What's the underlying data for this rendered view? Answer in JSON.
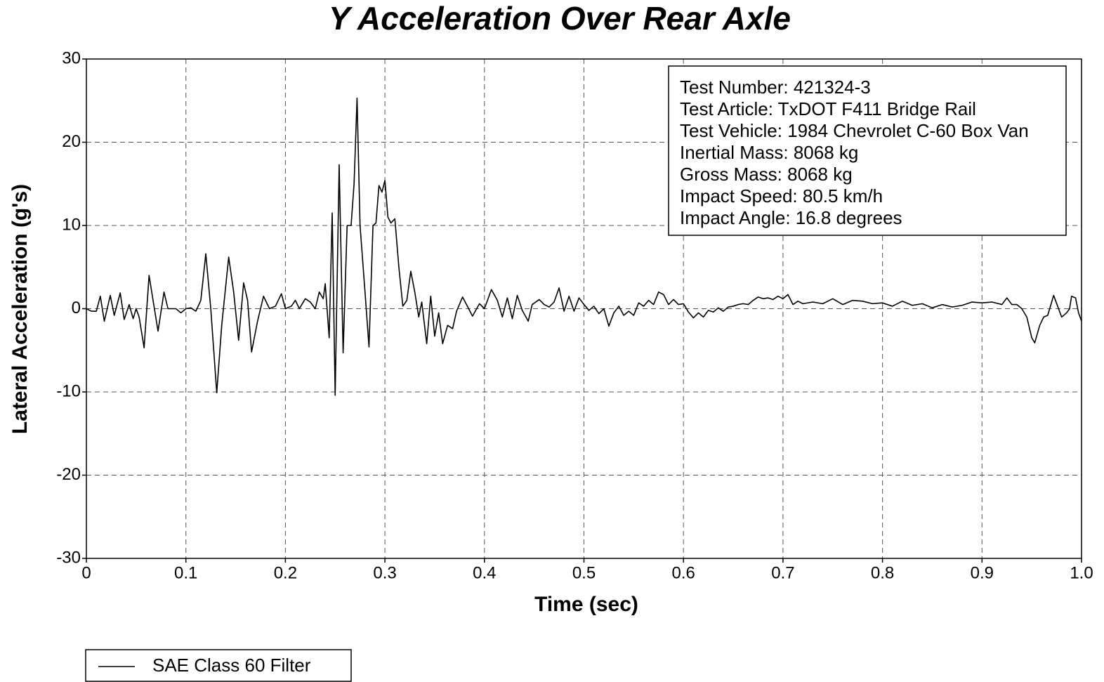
{
  "chart_data": {
    "type": "line",
    "title": "Y Acceleration Over Rear Axle",
    "x_label": "Time (sec)",
    "y_label": "Lateral Acceleration (g's)",
    "xlim": [
      0,
      1
    ],
    "ylim": [
      -30,
      30
    ],
    "xticks": [
      0,
      0.1,
      0.2,
      0.3,
      0.4,
      0.5,
      0.6,
      0.7,
      0.8,
      0.9,
      {
        "value": 1,
        "label": "1.0"
      }
    ],
    "yticks": [
      -30,
      -20,
      -10,
      0,
      10,
      20,
      30
    ],
    "grid": true,
    "annotations": [
      "Test Number: 421324-3",
      "Test Article: TxDOT F411 Bridge Rail",
      "Test Vehicle: 1984 Chevrolet C-60 Box Van",
      "Inertial Mass: 8068 kg",
      "Gross Mass: 8068 kg",
      "Impact Speed: 80.5 km/h",
      "Impact Angle: 16.8 degrees"
    ],
    "x": [
      0,
      0.005,
      0.01,
      0.014,
      0.018,
      0.024,
      0.028,
      0.034,
      0.038,
      0.043,
      0.047,
      0.05,
      0.053,
      0.058,
      0.063,
      0.067,
      0.072,
      0.078,
      0.082,
      0.09,
      0.095,
      0.1,
      0.105,
      0.11,
      0.115,
      0.12,
      0.125,
      0.131,
      0.136,
      0.143,
      0.148,
      0.153,
      0.158,
      0.162,
      0.166,
      0.172,
      0.178,
      0.184,
      0.19,
      0.196,
      0.2,
      0.206,
      0.21,
      0.214,
      0.22,
      0.225,
      0.23,
      0.234,
      0.238,
      0.24,
      0.244,
      0.247,
      0.25,
      0.254,
      0.258,
      0.262,
      0.266,
      0.269,
      0.272,
      0.275,
      0.28,
      0.284,
      0.288,
      0.291,
      0.294,
      0.297,
      0.3,
      0.303,
      0.306,
      0.31,
      0.314,
      0.318,
      0.322,
      0.326,
      0.33,
      0.334,
      0.337,
      0.342,
      0.346,
      0.35,
      0.354,
      0.358,
      0.363,
      0.368,
      0.372,
      0.378,
      0.382,
      0.388,
      0.395,
      0.4,
      0.407,
      0.413,
      0.418,
      0.423,
      0.428,
      0.433,
      0.438,
      0.444,
      0.448,
      0.455,
      0.46,
      0.465,
      0.47,
      0.475,
      0.48,
      0.485,
      0.49,
      0.495,
      0.5,
      0.505,
      0.51,
      0.515,
      0.52,
      0.525,
      0.53,
      0.535,
      0.54,
      0.545,
      0.55,
      0.555,
      0.56,
      0.565,
      0.57,
      0.575,
      0.58,
      0.585,
      0.59,
      0.595,
      0.6,
      0.605,
      0.61,
      0.615,
      0.62,
      0.625,
      0.63,
      0.635,
      0.64,
      0.645,
      0.65,
      0.655,
      0.66,
      0.665,
      0.67,
      0.675,
      0.68,
      0.685,
      0.69,
      0.695,
      0.7,
      0.705,
      0.71,
      0.715,
      0.72,
      0.73,
      0.74,
      0.75,
      0.76,
      0.77,
      0.78,
      0.79,
      0.8,
      0.81,
      0.82,
      0.83,
      0.84,
      0.85,
      0.86,
      0.87,
      0.88,
      0.89,
      0.9,
      0.91,
      0.92,
      0.925,
      0.93,
      0.935,
      0.94,
      0.945,
      0.95,
      0.953,
      0.958,
      0.962,
      0.966,
      0.972,
      0.976,
      0.98,
      0.985,
      0.988,
      0.99,
      0.994,
      0.997,
      1
    ],
    "series": [
      {
        "name": "SAE Class 60 Filter",
        "color": "#000000",
        "values": [
          0,
          -0.3,
          -0.3,
          1.5,
          -1.5,
          1.6,
          -0.8,
          1.9,
          -1.3,
          0.5,
          -1.2,
          0,
          -1,
          -4.7,
          4,
          1,
          -2.7,
          2,
          0,
          0,
          -0.5,
          0,
          0.1,
          -0.3,
          1,
          6.6,
          0,
          -10.1,
          -2,
          6.2,
          2,
          -3.8,
          3.1,
          1,
          -5.2,
          -1.5,
          1.5,
          0,
          0.3,
          1.8,
          0,
          0.3,
          1,
          0,
          1.2,
          0.8,
          0,
          2,
          1.2,
          3,
          -3.5,
          11.5,
          -10.4,
          17.3,
          -5.3,
          10,
          10,
          15,
          25.3,
          10,
          2,
          -4.6,
          10,
          10.3,
          14.8,
          14,
          15.4,
          11,
          10.3,
          10.8,
          5,
          0.3,
          1,
          4.5,
          2,
          -1,
          0.8,
          -4.2,
          1.5,
          -3.3,
          -0.5,
          -4.2,
          -2,
          -2.4,
          -0.3,
          1.4,
          0.5,
          -0.9,
          0.6,
          0,
          2.3,
          1,
          -1,
          1.3,
          -1.2,
          1.6,
          -0.2,
          -1.5,
          0.5,
          1.1,
          0.5,
          0.2,
          0.8,
          2.5,
          -0.3,
          1.5,
          -0.3,
          1.3,
          0.5,
          -0.2,
          0.3,
          -0.6,
          0,
          -2.1,
          -0.5,
          0.3,
          -0.8,
          -0.3,
          -0.8,
          0.7,
          0.3,
          1,
          0.5,
          2,
          1.7,
          0.5,
          1.1,
          0.5,
          0.6,
          -0.4,
          -1.1,
          -0.5,
          -1,
          -0.2,
          -0.4,
          0.1,
          -0.3,
          0.2,
          0.3,
          0.5,
          0.6,
          0.5,
          1,
          1.4,
          1.2,
          1.3,
          1.1,
          1.5,
          1.2,
          1.7,
          0.5,
          0.9,
          0.6,
          0.8,
          0.6,
          1.2,
          0.5,
          1,
          0.9,
          0.6,
          0.7,
          0.3,
          0.9,
          0.4,
          0.6,
          0.1,
          0.5,
          0.2,
          0.4,
          0.8,
          0.7,
          0.8,
          0.5,
          1.3,
          0.5,
          0.5,
          0,
          -1,
          -3.5,
          -4.1,
          -2,
          -1,
          -0.8,
          1.6,
          0.3,
          -1,
          -0.5,
          0,
          1.5,
          1.3,
          -0.5,
          -1.5
        ]
      }
    ]
  }
}
